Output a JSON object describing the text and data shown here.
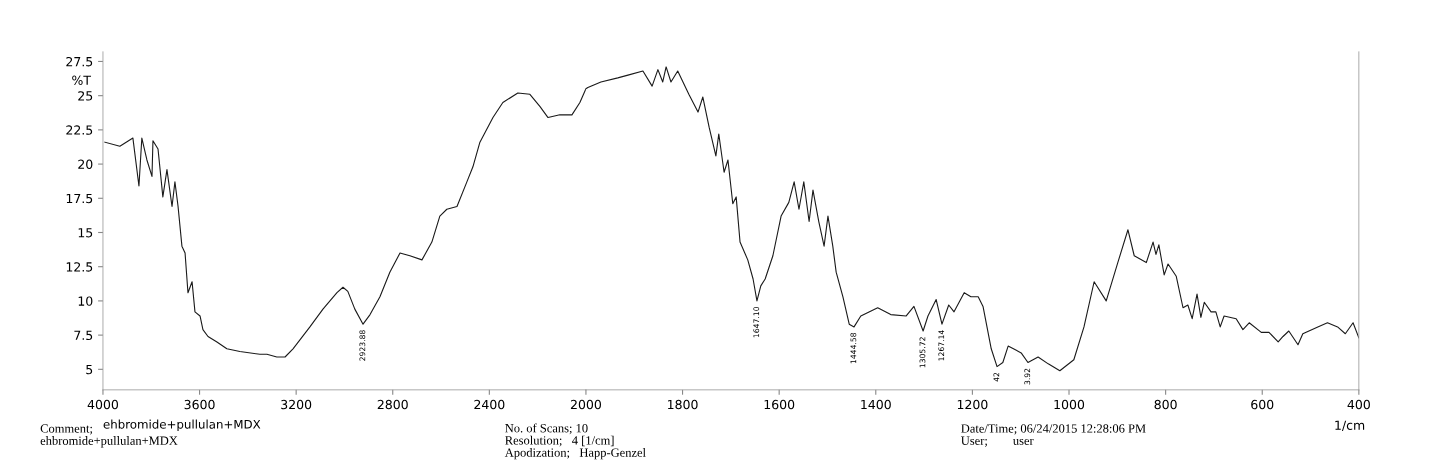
{
  "chart_data": [
    {
      "type": "line",
      "ylabel": "%T",
      "xlim": [
        4000,
        2000
      ],
      "xticks": [
        4000,
        3600,
        3200,
        2800,
        2400
      ],
      "ylim": [
        3.5,
        28.2
      ],
      "yticks": [
        5,
        7.5,
        10,
        12.5,
        15,
        17.5,
        20,
        22.5,
        25,
        27.5
      ],
      "grid": false,
      "legend": false,
      "series": [
        {
          "color": "#1a1a1a",
          "x": [
            3992,
            3930,
            3876,
            3851,
            3839,
            3818,
            3797,
            3793,
            3772,
            3752,
            3735,
            3714,
            3702,
            3689,
            3673,
            3660,
            3648,
            3631,
            3619,
            3598,
            3586,
            3565,
            3528,
            3487,
            3433,
            3350,
            3321,
            3280,
            3246,
            3213,
            3143,
            3089,
            3031,
            3006,
            2986,
            2957,
            2923,
            2894,
            2853,
            2812,
            2770,
            2729,
            2679,
            2638,
            2605,
            2576,
            2534,
            2493,
            2468,
            2439,
            2385,
            2344,
            2282,
            2232,
            2190,
            2157,
            2108,
            2058,
            2025,
            2000
          ],
          "values": [
            21.6,
            21.3,
            21.9,
            18.4,
            21.9,
            20.3,
            19.1,
            21.7,
            21.1,
            17.6,
            19.6,
            16.9,
            18.7,
            16.9,
            14.0,
            13.5,
            10.6,
            11.4,
            9.2,
            8.9,
            7.9,
            7.4,
            7.0,
            6.5,
            6.3,
            6.1,
            6.1,
            5.9,
            5.9,
            6.5,
            8.1,
            9.4,
            10.6,
            11.0,
            10.7,
            9.4,
            8.3,
            9.0,
            10.3,
            12.1,
            13.5,
            13.3,
            13.0,
            14.3,
            16.2,
            16.7,
            16.9,
            18.7,
            19.8,
            21.6,
            23.4,
            24.5,
            25.2,
            25.1,
            24.2,
            23.4,
            23.6,
            23.6,
            24.5,
            25.5
          ]
        }
      ],
      "annotations": [
        "ehbromide+pullulan+MDX",
        "Comment;\nehbromide+pullulan+MDX",
        "No. of Scans; 10\nResolution;   4 [1/cm]\nApodization;   Happ-Genzel",
        "Date/Time; 06/24/2015 12:28:06 PM\nUser;        user",
        {
          "text": "2923.88",
          "x": 2923,
          "y": 8.3
        }
      ]
    },
    {
      "type": "line",
      "xlabel": "1/cm",
      "xlim": [
        2000,
        400
      ],
      "xticks": [
        2000,
        1800,
        1600,
        1400,
        1200,
        1000,
        800,
        600,
        400
      ],
      "ylim": [
        3.5,
        28.2
      ],
      "tick_labels": "x",
      "grid": false,
      "legend": false,
      "series": [
        {
          "color": "#1a1a1a",
          "x": [
            2000,
            1996,
            1969,
            1934,
            1913,
            1882,
            1863,
            1851,
            1841,
            1834,
            1824,
            1810,
            1787,
            1768,
            1758,
            1745,
            1731,
            1725,
            1714,
            1706,
            1696,
            1689,
            1681,
            1665,
            1654,
            1646,
            1638,
            1629,
            1613,
            1596,
            1580,
            1569,
            1559,
            1549,
            1538,
            1530,
            1518,
            1507,
            1499,
            1489,
            1482,
            1468,
            1455,
            1445,
            1431,
            1396,
            1369,
            1337,
            1321,
            1302,
            1292,
            1275,
            1263,
            1249,
            1238,
            1217,
            1203,
            1188,
            1178,
            1161,
            1149,
            1137,
            1126,
            1099,
            1085,
            1064,
            1043,
            1019,
            990,
            969,
            948,
            923,
            899,
            878,
            865,
            840,
            826,
            820,
            814,
            803,
            795,
            778,
            764,
            754,
            745,
            735,
            727,
            720,
            706,
            696,
            687,
            679,
            654,
            640,
            627,
            602,
            586,
            567,
            557,
            545,
            526,
            516,
            485,
            465,
            444,
            428,
            412,
            400
          ],
          "values": [
            25.5,
            25.6,
            26.0,
            26.3,
            26.5,
            26.8,
            25.7,
            26.9,
            26.0,
            27.1,
            26.0,
            26.8,
            25.1,
            23.8,
            24.9,
            22.7,
            20.6,
            22.2,
            19.4,
            20.3,
            17.1,
            17.6,
            14.3,
            13.0,
            11.6,
            10.0,
            11.1,
            11.6,
            13.3,
            16.2,
            17.2,
            18.7,
            16.7,
            18.7,
            15.8,
            18.1,
            15.8,
            14.0,
            16.2,
            14.0,
            12.1,
            10.3,
            8.3,
            8.1,
            8.9,
            9.5,
            9.0,
            8.9,
            9.6,
            7.8,
            8.9,
            10.1,
            8.3,
            9.7,
            9.2,
            10.6,
            10.3,
            10.3,
            9.6,
            6.5,
            5.2,
            5.5,
            6.7,
            6.2,
            5.5,
            5.9,
            5.4,
            4.9,
            5.7,
            8.1,
            11.4,
            10.0,
            12.8,
            15.2,
            13.3,
            12.8,
            14.3,
            13.4,
            14.1,
            11.9,
            12.7,
            11.8,
            9.5,
            9.7,
            8.7,
            10.5,
            8.8,
            9.9,
            9.2,
            9.2,
            8.1,
            8.9,
            8.7,
            7.9,
            8.4,
            7.7,
            7.7,
            7.0,
            7.4,
            7.8,
            6.8,
            7.6,
            8.1,
            8.4,
            8.1,
            7.6,
            8.4,
            7.3
          ]
        }
      ],
      "annotations": [
        {
          "text": "1647.10",
          "x": 1646,
          "y": 10.0
        },
        {
          "text": "1444.58",
          "x": 1445,
          "y": 8.1
        },
        {
          "text": "1305.72",
          "x": 1302,
          "y": 7.8
        },
        {
          "text": "1267.14",
          "x": 1263,
          "y": 8.3
        },
        {
          "text": "42",
          "x": 1149,
          "y": 5.2
        },
        {
          "text": "3.92",
          "x": 1085,
          "y": 5.5
        }
      ]
    }
  ]
}
